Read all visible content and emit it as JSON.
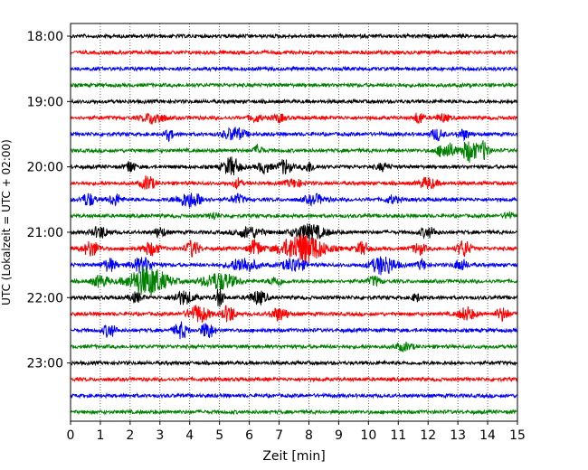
{
  "chart_data": {
    "type": "line",
    "title": "",
    "xlabel": "Zeit  [min]",
    "ylabel": "UTC (Lokalzeit = UTC + 02:00)",
    "xlim": [
      0,
      15
    ],
    "x_ticks": [
      0,
      1,
      2,
      3,
      4,
      5,
      6,
      7,
      8,
      9,
      10,
      11,
      12,
      13,
      14,
      15
    ],
    "x_tick_labels": [
      "0",
      "1",
      "2",
      "3",
      "4",
      "5",
      "6",
      "7",
      "8",
      "9",
      "10",
      "11",
      "12",
      "13",
      "14",
      "15"
    ],
    "y_tick_labels": [
      "18:00",
      "19:00",
      "20:00",
      "21:00",
      "22:00",
      "23:00"
    ],
    "grid": "vertical dotted lines at each minute",
    "trace_colors": [
      "#000000",
      "#ff0000",
      "#0000ff",
      "#008000"
    ],
    "traces": [
      {
        "row": 0,
        "bursts": []
      },
      {
        "row": 1,
        "bursts": []
      },
      {
        "row": 2,
        "bursts": []
      },
      {
        "row": 3,
        "bursts": []
      },
      {
        "row": 4,
        "bursts": []
      },
      {
        "row": 5,
        "bursts": [
          [
            2.8,
            0.5,
            6
          ],
          [
            6.2,
            0.3,
            4
          ],
          [
            7.0,
            0.3,
            4
          ],
          [
            11.7,
            0.2,
            7
          ],
          [
            12.5,
            0.3,
            4
          ]
        ]
      },
      {
        "row": 6,
        "bursts": [
          [
            3.3,
            0.2,
            6
          ],
          [
            5.5,
            0.5,
            7
          ],
          [
            12.3,
            0.3,
            6
          ],
          [
            13.2,
            0.3,
            5
          ]
        ]
      },
      {
        "row": 7,
        "bursts": [
          [
            6.3,
            0.2,
            6
          ],
          [
            12.6,
            0.4,
            9
          ],
          [
            13.4,
            0.4,
            12
          ],
          [
            13.9,
            0.2,
            10
          ]
        ]
      },
      {
        "row": 8,
        "bursts": [
          [
            2.0,
            0.2,
            7
          ],
          [
            5.4,
            0.4,
            10
          ],
          [
            6.5,
            0.3,
            6
          ],
          [
            7.2,
            0.3,
            8
          ],
          [
            8.0,
            0.3,
            5
          ],
          [
            10.5,
            0.3,
            4
          ]
        ]
      },
      {
        "row": 9,
        "bursts": [
          [
            2.6,
            0.3,
            8
          ],
          [
            5.6,
            0.2,
            5
          ],
          [
            12.0,
            0.4,
            6
          ],
          [
            7.5,
            0.4,
            4
          ]
        ]
      },
      {
        "row": 10,
        "bursts": [
          [
            0.6,
            0.3,
            7
          ],
          [
            1.5,
            0.3,
            6
          ],
          [
            4.0,
            0.6,
            8
          ],
          [
            5.6,
            0.3,
            5
          ],
          [
            8.2,
            0.5,
            5
          ],
          [
            10.8,
            0.3,
            4
          ]
        ]
      },
      {
        "row": 11,
        "bursts": [
          [
            4.8,
            0.2,
            4
          ],
          [
            14.7,
            0.2,
            4
          ]
        ]
      },
      {
        "row": 12,
        "bursts": [
          [
            1.0,
            0.4,
            6
          ],
          [
            3.0,
            0.3,
            5
          ],
          [
            6.0,
            0.6,
            6
          ],
          [
            8.0,
            0.8,
            8
          ],
          [
            12.0,
            0.4,
            5
          ]
        ]
      },
      {
        "row": 13,
        "bursts": [
          [
            0.7,
            0.4,
            8
          ],
          [
            2.7,
            0.4,
            7
          ],
          [
            4.1,
            0.3,
            9
          ],
          [
            6.2,
            0.3,
            9
          ],
          [
            7.8,
            1.0,
            16
          ],
          [
            9.8,
            0.3,
            7
          ],
          [
            11.7,
            0.3,
            6
          ],
          [
            13.2,
            0.3,
            9
          ]
        ]
      },
      {
        "row": 14,
        "bursts": [
          [
            1.3,
            0.3,
            7
          ],
          [
            2.4,
            0.5,
            8
          ],
          [
            5.8,
            0.6,
            8
          ],
          [
            7.5,
            0.5,
            8
          ],
          [
            10.5,
            0.6,
            10
          ],
          [
            11.8,
            0.2,
            6
          ],
          [
            13.1,
            0.3,
            6
          ]
        ]
      },
      {
        "row": 15,
        "bursts": [
          [
            1.0,
            0.4,
            6
          ],
          [
            2.6,
            0.9,
            16
          ],
          [
            5.0,
            0.8,
            9
          ],
          [
            6.9,
            0.3,
            5
          ],
          [
            10.2,
            0.3,
            5
          ]
        ]
      },
      {
        "row": 16,
        "bursts": [
          [
            2.2,
            0.3,
            5
          ],
          [
            3.8,
            0.5,
            7
          ],
          [
            5.0,
            0.2,
            10
          ],
          [
            6.3,
            0.4,
            7
          ],
          [
            11.6,
            0.2,
            4
          ]
        ]
      },
      {
        "row": 17,
        "bursts": [
          [
            4.3,
            0.5,
            9
          ],
          [
            5.3,
            0.3,
            9
          ],
          [
            7.0,
            0.4,
            7
          ],
          [
            13.3,
            0.4,
            7
          ],
          [
            14.5,
            0.3,
            7
          ]
        ]
      },
      {
        "row": 18,
        "bursts": [
          [
            1.3,
            0.3,
            7
          ],
          [
            3.7,
            0.3,
            9
          ],
          [
            4.6,
            0.3,
            9
          ]
        ]
      },
      {
        "row": 19,
        "bursts": [
          [
            11.2,
            0.4,
            4
          ]
        ]
      },
      {
        "row": 20,
        "bursts": []
      },
      {
        "row": 21,
        "bursts": []
      },
      {
        "row": 22,
        "bursts": []
      },
      {
        "row": 23,
        "bursts": []
      }
    ]
  }
}
